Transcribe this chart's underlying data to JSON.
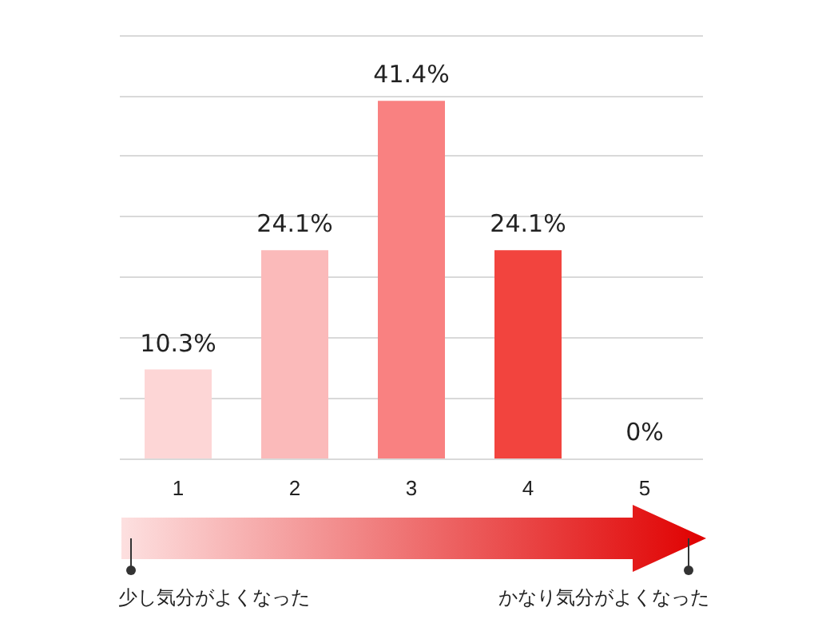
{
  "chart_data": {
    "type": "bar",
    "categories": [
      "1",
      "2",
      "3",
      "4",
      "5"
    ],
    "values": [
      10.3,
      24.1,
      41.4,
      24.1,
      0
    ],
    "value_labels": [
      "10.3%",
      "24.1%",
      "41.4%",
      "24.1%",
      "0%"
    ],
    "colors": [
      "#fdd6d6",
      "#fbbaba",
      "#f98181",
      "#f2443e",
      "#f2443e"
    ],
    "ylim": [
      0,
      49
    ],
    "yticks": [
      {
        "value": 0,
        "label": null
      },
      {
        "value": 7,
        "label": null
      },
      {
        "value": 14,
        "label": null
      },
      {
        "value": 21,
        "label": null
      },
      {
        "value": 28,
        "label": null
      },
      {
        "value": 35,
        "label": null
      },
      {
        "value": 42,
        "label": null
      },
      {
        "value": 49,
        "label": null
      }
    ],
    "grid": "y",
    "tick_labels": "x",
    "annotations": [
      "少し気分がよくなった",
      "かなり気分がよくなった"
    ]
  }
}
